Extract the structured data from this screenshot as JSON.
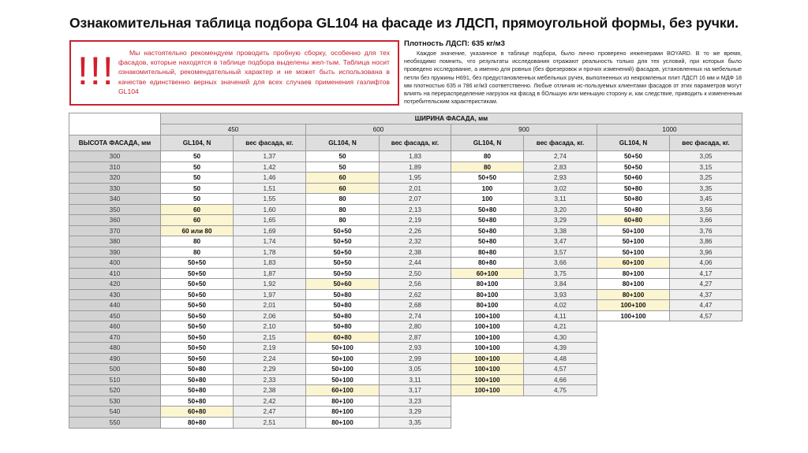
{
  "title": "Ознакомительная таблица подбора GL104 на фасаде из ЛДСП, прямоугольной формы, без ручки.",
  "warning": {
    "icon": "!!!",
    "text": "Мы настоятельно рекомендуем проводить пробную сборку, особенно для тех фасадов, которые находятся в таблице подбора выделены жел-тым. Таблица носит ознакомительный, рекомендательный характер и не может быть использована в качестве единственно верных значений для всех случаев применения газлифтов GL104"
  },
  "density": {
    "title": "Плотность ЛДСП: 635 кг/м3",
    "text": "Каждое значение, указанное в таблице подбора, было лично проверено инженерами BOYARD. В то же время, необходимо помнить, что результаты исследования отражают реальность только для тех условий, при которых было проведено исследование, а именно для ровных (без фрезеровок и прочих изменений) фасадов, установленных на мебельные петли без пружины H691, без предустановленных мебельных ручек, выполненных из некромленых плит ЛДСП 16 мм и МДФ 18 мм плотностью 635 и 786  кг/м3 соответственно. Любые отличия ис-пользуемых клиентами фасадов от этих параметров могут влиять на перераспределение нагрузок на фасад в бОльшую или меньшую сторону и, как следствие, приводить к измененным потребительским характеристикам."
  },
  "colors": {
    "warning_red": "#c9232f",
    "highlight": "#fcf5d2"
  },
  "table": {
    "width_header": "ШИРИНА ФАСАДА, мм",
    "height_header": "ВЫСОТА ФАСАДА, мм",
    "gl_header": "GL104, N",
    "weight_header": "вес фасада, кг.",
    "widths": [
      "450",
      "600",
      "900",
      "1000"
    ],
    "rows": [
      {
        "height": "300",
        "cells": [
          [
            "50",
            "1,37",
            0
          ],
          [
            "50",
            "1,83",
            0
          ],
          [
            "80",
            "2,74",
            0
          ],
          [
            "50+50",
            "3,05",
            0
          ]
        ]
      },
      {
        "height": "310",
        "cells": [
          [
            "50",
            "1,42",
            0
          ],
          [
            "50",
            "1,89",
            0
          ],
          [
            "80",
            "2,83",
            1
          ],
          [
            "50+50",
            "3,15",
            0
          ]
        ]
      },
      {
        "height": "320",
        "cells": [
          [
            "50",
            "1,46",
            0
          ],
          [
            "60",
            "1,95",
            1
          ],
          [
            "50+50",
            "2,93",
            0
          ],
          [
            "50+60",
            "3,25",
            0
          ]
        ]
      },
      {
        "height": "330",
        "cells": [
          [
            "50",
            "1,51",
            0
          ],
          [
            "60",
            "2,01",
            1
          ],
          [
            "100",
            "3,02",
            0
          ],
          [
            "50+80",
            "3,35",
            0
          ]
        ]
      },
      {
        "height": "340",
        "cells": [
          [
            "50",
            "1,55",
            0
          ],
          [
            "80",
            "2,07",
            0
          ],
          [
            "100",
            "3,11",
            0
          ],
          [
            "50+80",
            "3,45",
            0
          ]
        ]
      },
      {
        "height": "350",
        "cells": [
          [
            "60",
            "1,60",
            1
          ],
          [
            "80",
            "2,13",
            0
          ],
          [
            "50+80",
            "3,20",
            0
          ],
          [
            "50+80",
            "3,56",
            0
          ]
        ]
      },
      {
        "height": "360",
        "cells": [
          [
            "60",
            "1,65",
            1
          ],
          [
            "80",
            "2,19",
            0
          ],
          [
            "50+80",
            "3,29",
            0
          ],
          [
            "60+80",
            "3,66",
            1
          ]
        ]
      },
      {
        "height": "370",
        "cells": [
          [
            "60 или 80",
            "1,69",
            1
          ],
          [
            "50+50",
            "2,26",
            0
          ],
          [
            "50+80",
            "3,38",
            0
          ],
          [
            "50+100",
            "3,76",
            0
          ]
        ]
      },
      {
        "height": "380",
        "cells": [
          [
            "80",
            "1,74",
            0
          ],
          [
            "50+50",
            "2,32",
            0
          ],
          [
            "50+80",
            "3,47",
            0
          ],
          [
            "50+100",
            "3,86",
            0
          ]
        ]
      },
      {
        "height": "390",
        "cells": [
          [
            "80",
            "1,78",
            0
          ],
          [
            "50+50",
            "2,38",
            0
          ],
          [
            "80+80",
            "3,57",
            0
          ],
          [
            "50+100",
            "3,96",
            0
          ]
        ]
      },
      {
        "height": "400",
        "cells": [
          [
            "50+50",
            "1,83",
            0
          ],
          [
            "50+50",
            "2,44",
            0
          ],
          [
            "80+80",
            "3,66",
            0
          ],
          [
            "60+100",
            "4,06",
            1
          ]
        ]
      },
      {
        "height": "410",
        "cells": [
          [
            "50+50",
            "1,87",
            0
          ],
          [
            "50+50",
            "2,50",
            0
          ],
          [
            "60+100",
            "3,75",
            1
          ],
          [
            "80+100",
            "4,17",
            0
          ]
        ]
      },
      {
        "height": "420",
        "cells": [
          [
            "50+50",
            "1,92",
            0
          ],
          [
            "50+60",
            "2,56",
            1
          ],
          [
            "80+100",
            "3,84",
            0
          ],
          [
            "80+100",
            "4,27",
            0
          ]
        ]
      },
      {
        "height": "430",
        "cells": [
          [
            "50+50",
            "1,97",
            0
          ],
          [
            "50+80",
            "2,62",
            0
          ],
          [
            "80+100",
            "3,93",
            0
          ],
          [
            "80+100",
            "4,37",
            1
          ]
        ]
      },
      {
        "height": "440",
        "cells": [
          [
            "50+50",
            "2,01",
            0
          ],
          [
            "50+80",
            "2,68",
            0
          ],
          [
            "80+100",
            "4,02",
            0
          ],
          [
            "100+100",
            "4,47",
            1
          ]
        ]
      },
      {
        "height": "450",
        "cells": [
          [
            "50+50",
            "2,06",
            0
          ],
          [
            "50+80",
            "2,74",
            0
          ],
          [
            "100+100",
            "4,11",
            0
          ],
          [
            "100+100",
            "4,57",
            0
          ]
        ]
      },
      {
        "height": "460",
        "cells": [
          [
            "50+50",
            "2,10",
            0
          ],
          [
            "50+80",
            "2,80",
            0
          ],
          [
            "100+100",
            "4,21",
            0
          ],
          null
        ]
      },
      {
        "height": "470",
        "cells": [
          [
            "50+50",
            "2,15",
            0
          ],
          [
            "60+80",
            "2,87",
            1
          ],
          [
            "100+100",
            "4,30",
            0
          ],
          null
        ]
      },
      {
        "height": "480",
        "cells": [
          [
            "50+50",
            "2,19",
            0
          ],
          [
            "50+100",
            "2,93",
            0
          ],
          [
            "100+100",
            "4,39",
            0
          ],
          null
        ]
      },
      {
        "height": "490",
        "cells": [
          [
            "50+50",
            "2,24",
            0
          ],
          [
            "50+100",
            "2,99",
            0
          ],
          [
            "100+100",
            "4,48",
            1
          ],
          null
        ]
      },
      {
        "height": "500",
        "cells": [
          [
            "50+80",
            "2,29",
            0
          ],
          [
            "50+100",
            "3,05",
            0
          ],
          [
            "100+100",
            "4,57",
            1
          ],
          null
        ]
      },
      {
        "height": "510",
        "cells": [
          [
            "50+80",
            "2,33",
            0
          ],
          [
            "50+100",
            "3,11",
            0
          ],
          [
            "100+100",
            "4,66",
            1
          ],
          null
        ]
      },
      {
        "height": "520",
        "cells": [
          [
            "50+80",
            "2,38",
            0
          ],
          [
            "60+100",
            "3,17",
            1
          ],
          [
            "100+100",
            "4,75",
            1
          ],
          null
        ]
      },
      {
        "height": "530",
        "cells": [
          [
            "50+80",
            "2,42",
            0
          ],
          [
            "80+100",
            "3,23",
            0
          ],
          null,
          null
        ]
      },
      {
        "height": "540",
        "cells": [
          [
            "60+80",
            "2,47",
            1
          ],
          [
            "80+100",
            "3,29",
            0
          ],
          null,
          null
        ]
      },
      {
        "height": "550",
        "cells": [
          [
            "80+80",
            "2,51",
            0
          ],
          [
            "80+100",
            "3,35",
            0
          ],
          null,
          null
        ]
      }
    ]
  }
}
